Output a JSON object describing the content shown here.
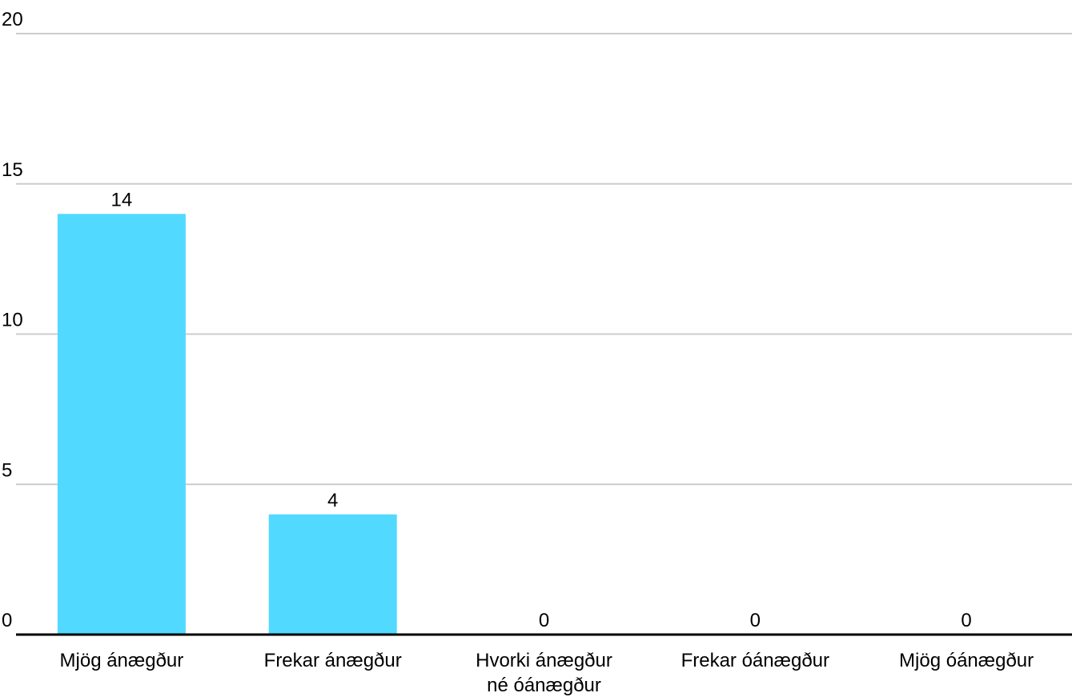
{
  "chart_data": {
    "type": "bar",
    "categories": [
      [
        "Mjög ánægður"
      ],
      [
        "Frekar ánægður"
      ],
      [
        "Hvorki ánægður",
        "né óánægður"
      ],
      [
        "Frekar óánægður"
      ],
      [
        "Mjög óánægður"
      ]
    ],
    "values": [
      14,
      4,
      0,
      0,
      0
    ],
    "data_labels": [
      "14",
      "4",
      "0",
      "0",
      "0"
    ],
    "ylim": [
      0,
      20
    ],
    "yticks": [
      0,
      5,
      10,
      15,
      20
    ],
    "ytick_labels": [
      "0",
      "5",
      "10",
      "15",
      "20"
    ],
    "grid": true,
    "legend": "none",
    "colors": {
      "bar": "#52d9ff",
      "grid": "#cccccc",
      "axis": "#000000",
      "text": "#000000"
    }
  }
}
